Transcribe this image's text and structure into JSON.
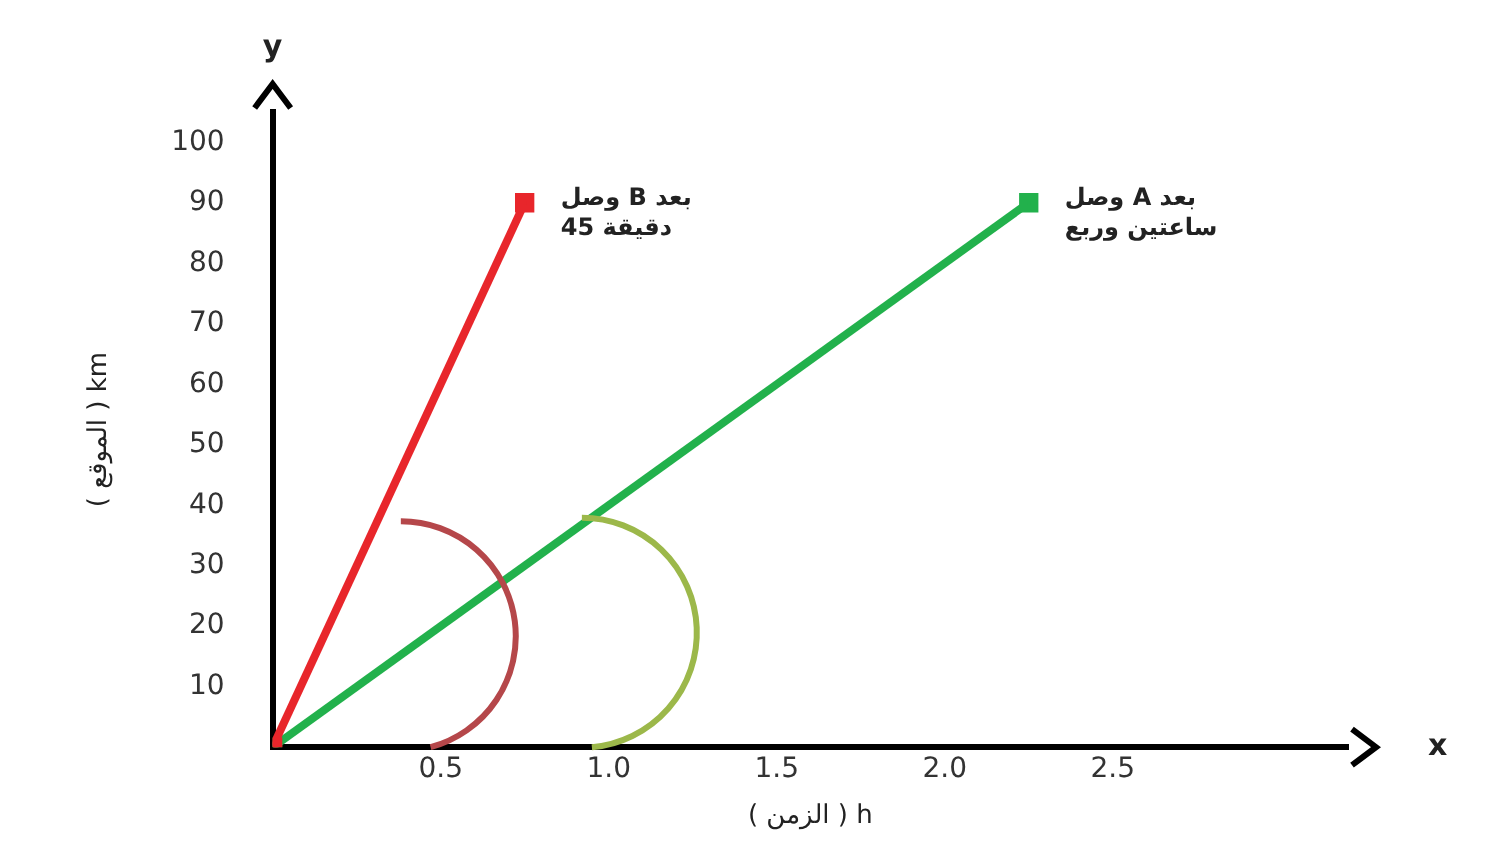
{
  "chart_data": {
    "type": "line",
    "xlabel": "( الزمن ) h",
    "ylabel": "( الموقع ) km",
    "annotations": [
      "x",
      "y",
      {
        "text": "وصل B بعد 45 دقيقة",
        "x": 0.75,
        "y": 90
      },
      {
        "text": "وصل A بعد ساعتين وربع",
        "x": 2.25,
        "y": 90
      }
    ],
    "series": [
      {
        "color": "#e8262b",
        "x": [
          0,
          0.75
        ],
        "values": [
          0,
          90
        ]
      },
      {
        "color": "#22b14c",
        "x": [
          0,
          2.25
        ],
        "values": [
          0,
          90
        ]
      }
    ],
    "xlim": [
      0,
      3.2
    ],
    "xticks": [
      0.5,
      {
        "value": 1,
        "label": "1.0"
      },
      1.5,
      {
        "value": 2,
        "label": "2.0"
      },
      2.5
    ],
    "ylim": [
      0,
      105
    ],
    "yticks": [
      10,
      20,
      30,
      40,
      50,
      60,
      70,
      80,
      90,
      100
    ],
    "grid": false,
    "legend": false,
    "marker": "square",
    "line_style": "solid"
  }
}
